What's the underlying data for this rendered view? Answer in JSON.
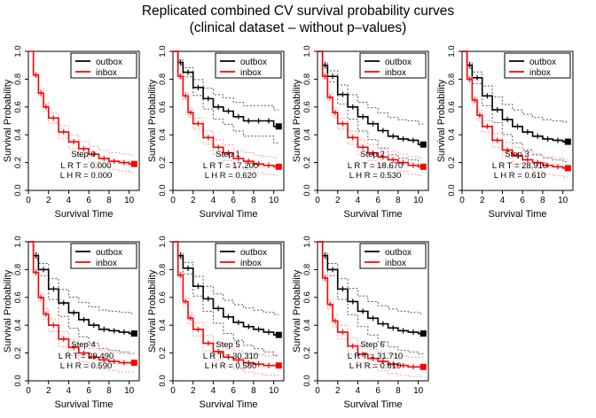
{
  "figure": {
    "title_line1": "Replicated combined CV survival probability curves",
    "title_line2": "(clinical dataset – without p–values)"
  },
  "colors": {
    "outbox": "#000000",
    "inbox": "#ff0000",
    "ci_inbox": "#ff9999",
    "ci_outbox": "#555555"
  },
  "chart_data": [
    {
      "type": "line",
      "label": "Step 0",
      "xlabel": "Survival Time",
      "ylabel": "Survival Probability",
      "xlim": [
        0,
        11
      ],
      "ylim": [
        0,
        1
      ],
      "xticks": [
        0,
        2,
        4,
        6,
        8,
        10
      ],
      "yticks": [
        "0.0",
        "0.2",
        "0.4",
        "0.6",
        "0.8",
        "1.0"
      ],
      "legend": [
        "outbox",
        "inbox"
      ],
      "legend_position": "top-right",
      "stats": [
        "L R T = 0.000",
        "L H R = 0.000"
      ],
      "series": [
        {
          "name": "inbox",
          "end_x": 10.5,
          "x": [
            0,
            0.5,
            1,
            1.5,
            2,
            3,
            4,
            5,
            6,
            7,
            8,
            9,
            10,
            10.5
          ],
          "y": [
            1.0,
            0.83,
            0.7,
            0.6,
            0.52,
            0.42,
            0.35,
            0.3,
            0.26,
            0.23,
            0.21,
            0.2,
            0.19,
            0.19
          ]
        }
      ]
    },
    {
      "type": "line",
      "label": "Step 1",
      "xlabel": "Survival Time",
      "ylabel": "Survival Probability",
      "xlim": [
        0,
        11
      ],
      "ylim": [
        0,
        1
      ],
      "xticks": [
        0,
        2,
        4,
        6,
        8,
        10
      ],
      "yticks": [
        "0.0",
        "0.2",
        "0.4",
        "0.6",
        "0.8",
        "1.0"
      ],
      "legend": [
        "outbox",
        "inbox"
      ],
      "legend_position": "top-right",
      "stats": [
        "L R T = 17.200",
        "L H R = 0.620"
      ],
      "series": [
        {
          "name": "outbox",
          "end_x": 10.5,
          "x": [
            0,
            0.5,
            1,
            2,
            3,
            4,
            5,
            6,
            7,
            8,
            9,
            10,
            10.5
          ],
          "y": [
            1.0,
            0.92,
            0.85,
            0.74,
            0.66,
            0.6,
            0.57,
            0.53,
            0.5,
            0.5,
            0.5,
            0.46,
            0.46
          ]
        },
        {
          "name": "inbox",
          "end_x": 10.5,
          "x": [
            0,
            0.5,
            1,
            1.5,
            2,
            3,
            4,
            5,
            6,
            7,
            8,
            9,
            10,
            10.5
          ],
          "y": [
            1.0,
            0.82,
            0.68,
            0.56,
            0.48,
            0.38,
            0.31,
            0.27,
            0.23,
            0.21,
            0.19,
            0.18,
            0.17,
            0.17
          ]
        }
      ]
    },
    {
      "type": "line",
      "label": "Step 2",
      "xlabel": "Survival Time",
      "ylabel": "Survival Probability",
      "xlim": [
        0,
        11
      ],
      "ylim": [
        0,
        1
      ],
      "xticks": [
        0,
        2,
        4,
        6,
        8,
        10
      ],
      "yticks": [
        "0.0",
        "0.2",
        "0.4",
        "0.6",
        "0.8",
        "1.0"
      ],
      "legend": [
        "outbox",
        "inbox"
      ],
      "legend_position": "top-right",
      "stats": [
        "L R T = 18.670",
        "L H R = 0.530"
      ],
      "series": [
        {
          "name": "outbox",
          "end_x": 10.5,
          "x": [
            0,
            0.5,
            1,
            2,
            3,
            4,
            5,
            6,
            7,
            8,
            9,
            10,
            10.5
          ],
          "y": [
            1.0,
            0.9,
            0.82,
            0.69,
            0.6,
            0.53,
            0.48,
            0.43,
            0.39,
            0.37,
            0.36,
            0.33,
            0.33
          ]
        },
        {
          "name": "inbox",
          "end_x": 10.5,
          "x": [
            0,
            0.5,
            1,
            1.5,
            2,
            3,
            4,
            5,
            6,
            7,
            8,
            9,
            10,
            10.5
          ],
          "y": [
            1.0,
            0.82,
            0.67,
            0.56,
            0.48,
            0.38,
            0.31,
            0.27,
            0.24,
            0.22,
            0.2,
            0.18,
            0.17,
            0.17
          ]
        }
      ]
    },
    {
      "type": "line",
      "label": "Step 3",
      "xlabel": "Survival Time",
      "ylabel": "Survival Probability",
      "xlim": [
        0,
        11
      ],
      "ylim": [
        0,
        1
      ],
      "xticks": [
        0,
        2,
        4,
        6,
        8,
        10
      ],
      "yticks": [
        "0.0",
        "0.2",
        "0.4",
        "0.6",
        "0.8",
        "1.0"
      ],
      "legend": [
        "outbox",
        "inbox"
      ],
      "legend_position": "top-right",
      "stats": [
        "L R T = 28.910",
        "L H R = 0.610"
      ],
      "series": [
        {
          "name": "outbox",
          "end_x": 10.5,
          "x": [
            0,
            0.5,
            1,
            2,
            3,
            4,
            5,
            6,
            7,
            8,
            9,
            10,
            10.5
          ],
          "y": [
            1.0,
            0.9,
            0.81,
            0.68,
            0.58,
            0.51,
            0.46,
            0.42,
            0.39,
            0.37,
            0.36,
            0.35,
            0.35
          ]
        },
        {
          "name": "inbox",
          "end_x": 10.5,
          "x": [
            0,
            0.5,
            1,
            1.5,
            2,
            3,
            4,
            5,
            6,
            7,
            8,
            9,
            10,
            10.5
          ],
          "y": [
            1.0,
            0.8,
            0.65,
            0.54,
            0.46,
            0.36,
            0.29,
            0.25,
            0.22,
            0.2,
            0.18,
            0.17,
            0.16,
            0.16
          ]
        }
      ]
    },
    {
      "type": "line",
      "label": "Step 4",
      "xlabel": "Survival Time",
      "ylabel": "Survival Probability",
      "xlim": [
        0,
        11
      ],
      "ylim": [
        0,
        1
      ],
      "xticks": [
        0,
        2,
        4,
        6,
        8,
        10
      ],
      "yticks": [
        "0.0",
        "0.2",
        "0.4",
        "0.6",
        "0.8",
        "1.0"
      ],
      "legend": [
        "outbox",
        "inbox"
      ],
      "legend_position": "top-right",
      "stats": [
        "L R T = 29.490",
        "L H R = 0.590"
      ],
      "series": [
        {
          "name": "outbox",
          "end_x": 10.5,
          "x": [
            0,
            0.5,
            1,
            2,
            3,
            4,
            5,
            6,
            7,
            8,
            9,
            10,
            10.5
          ],
          "y": [
            1.0,
            0.9,
            0.8,
            0.66,
            0.56,
            0.49,
            0.44,
            0.4,
            0.37,
            0.36,
            0.35,
            0.34,
            0.34
          ]
        },
        {
          "name": "inbox",
          "end_x": 10.5,
          "x": [
            0,
            0.5,
            1,
            1.5,
            2,
            3,
            4,
            5,
            6,
            7,
            8,
            9,
            10,
            10.5
          ],
          "y": [
            1.0,
            0.78,
            0.6,
            0.48,
            0.4,
            0.3,
            0.24,
            0.2,
            0.17,
            0.15,
            0.14,
            0.13,
            0.13,
            0.13
          ]
        }
      ]
    },
    {
      "type": "line",
      "label": "Step 5",
      "xlabel": "Survival Time",
      "ylabel": "Survival Probability",
      "xlim": [
        0,
        11
      ],
      "ylim": [
        0,
        1
      ],
      "xticks": [
        0,
        2,
        4,
        6,
        8,
        10
      ],
      "yticks": [
        "0.0",
        "0.2",
        "0.4",
        "0.6",
        "0.8",
        "1.0"
      ],
      "legend": [
        "outbox",
        "inbox"
      ],
      "legend_position": "top-right",
      "stats": [
        "L R T = 30.310",
        "L H R = 0.580"
      ],
      "series": [
        {
          "name": "outbox",
          "end_x": 10.5,
          "x": [
            0,
            0.5,
            1,
            2,
            3,
            4,
            5,
            6,
            7,
            8,
            9,
            10,
            10.5
          ],
          "y": [
            1.0,
            0.9,
            0.81,
            0.68,
            0.59,
            0.52,
            0.46,
            0.42,
            0.39,
            0.37,
            0.35,
            0.33,
            0.33
          ]
        },
        {
          "name": "inbox",
          "end_x": 10.5,
          "x": [
            0,
            0.5,
            1,
            1.5,
            2,
            3,
            4,
            5,
            6,
            7,
            8,
            9,
            10,
            10.5
          ],
          "y": [
            1.0,
            0.76,
            0.57,
            0.45,
            0.37,
            0.27,
            0.21,
            0.17,
            0.15,
            0.13,
            0.12,
            0.11,
            0.11,
            0.11
          ]
        }
      ]
    },
    {
      "type": "line",
      "label": "Step 6",
      "xlabel": "Survival Time",
      "ylabel": "Survival Probability",
      "xlim": [
        0,
        11
      ],
      "ylim": [
        0,
        1
      ],
      "xticks": [
        0,
        2,
        4,
        6,
        8,
        10
      ],
      "yticks": [
        "0.0",
        "0.2",
        "0.4",
        "0.6",
        "0.8",
        "1.0"
      ],
      "legend": [
        "outbox",
        "inbox"
      ],
      "legend_position": "top-right",
      "stats": [
        "L R T = 31.710",
        "L H R = 0.610"
      ],
      "series": [
        {
          "name": "outbox",
          "end_x": 10.5,
          "x": [
            0,
            0.5,
            1,
            2,
            3,
            4,
            5,
            6,
            7,
            8,
            9,
            10,
            10.5
          ],
          "y": [
            1.0,
            0.9,
            0.8,
            0.66,
            0.57,
            0.5,
            0.45,
            0.41,
            0.38,
            0.36,
            0.35,
            0.34,
            0.34
          ]
        },
        {
          "name": "inbox",
          "end_x": 10.5,
          "x": [
            0,
            0.5,
            1,
            1.5,
            2,
            3,
            4,
            5,
            6,
            7,
            8,
            9,
            10,
            10.5
          ],
          "y": [
            1.0,
            0.74,
            0.55,
            0.43,
            0.35,
            0.25,
            0.19,
            0.16,
            0.14,
            0.12,
            0.11,
            0.1,
            0.1,
            0.1
          ]
        }
      ]
    }
  ]
}
